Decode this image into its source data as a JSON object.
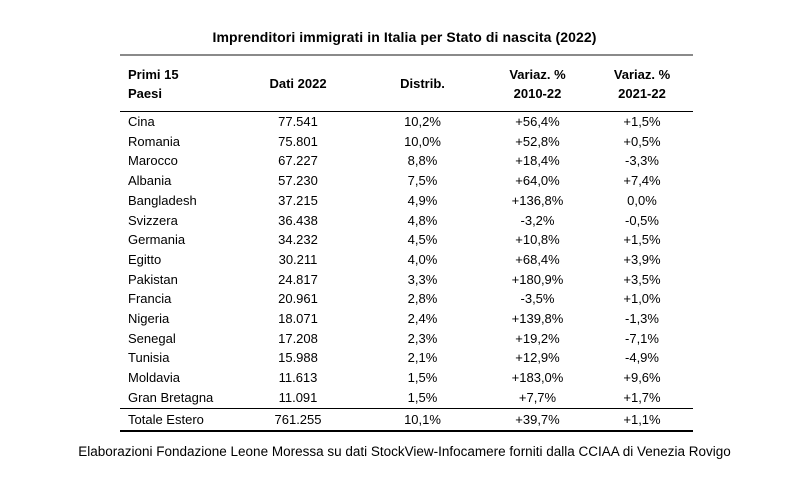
{
  "colors": {
    "top_rule": "#8a8a8a",
    "table_rules": "#000000",
    "text": "#000000",
    "background": "#ffffff"
  },
  "chart_data": {
    "type": "table",
    "title": "Imprenditori immigrati in Italia per Stato di nascita (2022)",
    "headers": [
      {
        "lines": [
          "Primi 15",
          "Paesi"
        ]
      },
      {
        "lines": [
          "Dati 2022"
        ]
      },
      {
        "lines": [
          "Distrib."
        ]
      },
      {
        "lines": [
          "Variaz. %",
          "2010-22"
        ]
      },
      {
        "lines": [
          "Variaz. %",
          "2021-22"
        ]
      }
    ],
    "rows": [
      [
        "Cina",
        "77.541",
        "10,2%",
        "+56,4%",
        "+1,5%"
      ],
      [
        "Romania",
        "75.801",
        "10,0%",
        "+52,8%",
        "+0,5%"
      ],
      [
        "Marocco",
        "67.227",
        "8,8%",
        "+18,4%",
        "-3,3%"
      ],
      [
        "Albania",
        "57.230",
        "7,5%",
        "+64,0%",
        "+7,4%"
      ],
      [
        "Bangladesh",
        "37.215",
        "4,9%",
        "+136,8%",
        "0,0%"
      ],
      [
        "Svizzera",
        "36.438",
        "4,8%",
        "-3,2%",
        "-0,5%"
      ],
      [
        "Germania",
        "34.232",
        "4,5%",
        "+10,8%",
        "+1,5%"
      ],
      [
        "Egitto",
        "30.211",
        "4,0%",
        "+68,4%",
        "+3,9%"
      ],
      [
        "Pakistan",
        "24.817",
        "3,3%",
        "+180,9%",
        "+3,5%"
      ],
      [
        "Francia",
        "20.961",
        "2,8%",
        "-3,5%",
        "+1,0%"
      ],
      [
        "Nigeria",
        "18.071",
        "2,4%",
        "+139,8%",
        "-1,3%"
      ],
      [
        "Senegal",
        "17.208",
        "2,3%",
        "+19,2%",
        "-7,1%"
      ],
      [
        "Tunisia",
        "15.988",
        "2,1%",
        "+12,9%",
        "-4,9%"
      ],
      [
        "Moldavia",
        "11.613",
        "1,5%",
        "+183,0%",
        "+9,6%"
      ],
      [
        "Gran Bretagna",
        "11.091",
        "1,5%",
        "+7,7%",
        "+1,7%"
      ]
    ],
    "total_row": [
      "Totale Estero",
      "761.255",
      "10,1%",
      "+39,7%",
      "+1,1%"
    ],
    "source_note": "Elaborazioni Fondazione Leone Moressa su dati StockView-Infocamere forniti dalla CCIAA di Venezia Rovigo"
  }
}
